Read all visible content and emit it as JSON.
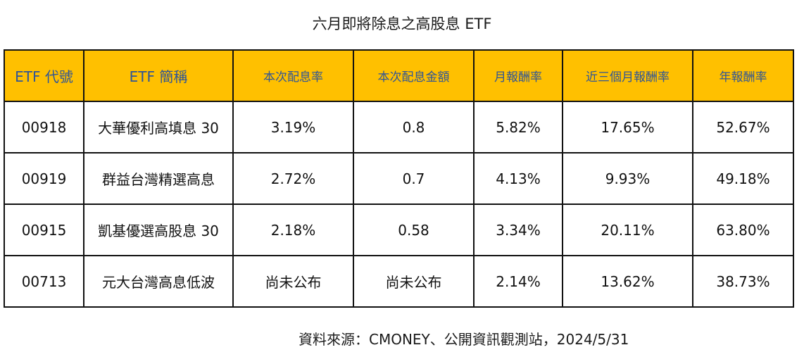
{
  "title": "六月即將除息之高股息 ETF",
  "table": {
    "headers": [
      "ETF 代號",
      "ETF 簡稱",
      "本次配息率",
      "本次配息金額",
      "月報酬率",
      "近三個月報酬率",
      "年報酬率"
    ],
    "rows": [
      [
        "00918",
        "大華優利高填息 30",
        "3.19%",
        "0.8",
        "5.82%",
        "17.65%",
        "52.67%"
      ],
      [
        "00919",
        "群益台灣精選高息",
        "2.72%",
        "0.7",
        "4.13%",
        "9.93%",
        "49.18%"
      ],
      [
        "00915",
        "凱基優選高股息 30",
        "2.18%",
        "0.58",
        "3.34%",
        "20.11%",
        "63.80%"
      ],
      [
        "00713",
        "元大台灣高息低波",
        "尚未公布",
        "尚未公布",
        "2.14%",
        "13.62%",
        "38.73%"
      ]
    ]
  },
  "source": "資料來源：CMONEY、公開資訊觀測站，2024/5/31",
  "colors": {
    "header_bg": "#FFC000",
    "header_text": "#2F5597",
    "border": "#111111"
  }
}
